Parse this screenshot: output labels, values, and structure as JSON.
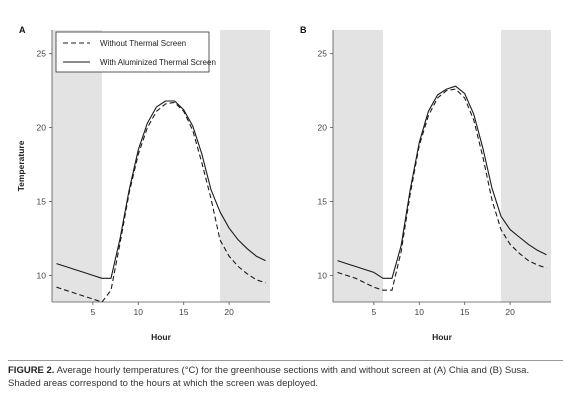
{
  "caption": {
    "label": "FIGURE 2.",
    "text": "Average hourly temperatures (°C) for the greenhouse sections with and without screen at (A) Chia and (B) Susa. Shaded areas correspond to the hours at which the screen was deployed."
  },
  "colors": {
    "shade": "#e3e3e3",
    "line": "#1a1a1a",
    "axis": "#555555"
  },
  "chart_data": [
    {
      "type": "line",
      "panel": "A",
      "xlabel": "Hour",
      "ylabel": "Temperature",
      "xlim": [
        0.5,
        24.5
      ],
      "ylim": [
        8.2,
        26.6
      ],
      "xticks": [
        5,
        10,
        15,
        20
      ],
      "yticks": [
        10,
        15,
        20,
        25
      ],
      "shaded_hours": [
        [
          0.5,
          6
        ],
        [
          19,
          24.5
        ]
      ],
      "legend": {
        "placement": "top-left"
      },
      "x": [
        1,
        2,
        3,
        4,
        5,
        6,
        7,
        8,
        9,
        10,
        11,
        12,
        13,
        14,
        15,
        16,
        17,
        18,
        19,
        20,
        21,
        22,
        23,
        24
      ],
      "series": [
        {
          "name": "Without Thermal Screen",
          "style": "dashed",
          "values": [
            9.2,
            9.0,
            8.8,
            8.6,
            8.4,
            8.2,
            9.0,
            12.2,
            15.6,
            18.2,
            20.0,
            21.1,
            21.6,
            21.7,
            21.1,
            19.8,
            17.6,
            15.2,
            12.4,
            11.3,
            10.6,
            10.1,
            9.7,
            9.5
          ]
        },
        {
          "name": "With Aluminized Thermal Screen",
          "style": "solid",
          "values": [
            10.8,
            10.6,
            10.4,
            10.2,
            10.0,
            9.8,
            9.8,
            12.5,
            15.8,
            18.5,
            20.3,
            21.4,
            21.8,
            21.8,
            21.2,
            20.1,
            18.2,
            15.8,
            14.3,
            13.2,
            12.4,
            11.8,
            11.3,
            11.0
          ]
        }
      ]
    },
    {
      "type": "line",
      "panel": "B",
      "xlabel": "Hour",
      "ylabel": "",
      "xlim": [
        0.5,
        24.5
      ],
      "ylim": [
        8.2,
        26.6
      ],
      "xticks": [
        5,
        10,
        15,
        20
      ],
      "yticks": [
        10,
        15,
        20,
        25
      ],
      "shaded_hours": [
        [
          0.5,
          6
        ],
        [
          19,
          24.5
        ]
      ],
      "x": [
        1,
        2,
        3,
        4,
        5,
        6,
        7,
        8,
        9,
        10,
        11,
        12,
        13,
        14,
        15,
        16,
        17,
        18,
        19,
        20,
        21,
        22,
        23,
        24
      ],
      "series": [
        {
          "name": "Without Thermal Screen",
          "style": "dashed",
          "values": [
            10.2,
            10.0,
            9.8,
            9.5,
            9.2,
            9.0,
            9.0,
            11.6,
            15.5,
            18.8,
            20.8,
            22.0,
            22.5,
            22.6,
            22.0,
            20.5,
            18.0,
            15.1,
            13.1,
            12.1,
            11.5,
            11.0,
            10.7,
            10.5
          ]
        },
        {
          "name": "With Aluminized Thermal Screen",
          "style": "solid",
          "values": [
            11.0,
            10.8,
            10.6,
            10.4,
            10.2,
            9.8,
            9.8,
            12.0,
            15.8,
            19.0,
            21.1,
            22.2,
            22.6,
            22.8,
            22.3,
            20.9,
            18.6,
            15.9,
            14.0,
            13.1,
            12.6,
            12.1,
            11.7,
            11.4
          ]
        }
      ]
    }
  ]
}
